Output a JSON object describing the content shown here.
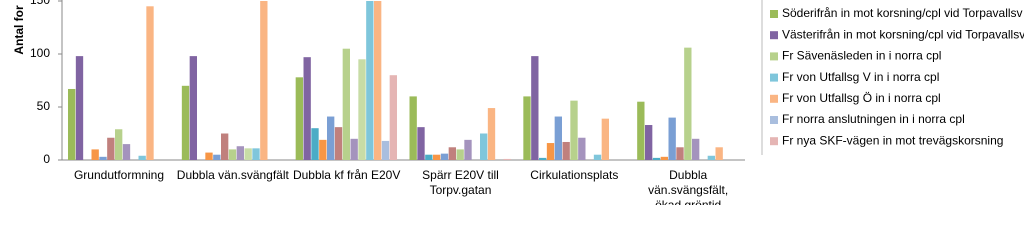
{
  "chart_data": {
    "type": "bar",
    "y_label": "Antal for",
    "categories": [
      "Grundutformning",
      "Dubbla vän.svängfält",
      "Dubbla kf från E20V",
      "Spärr E20V till\nTorpv.gatan",
      "Cirkulationsplats",
      "Dubbla vän.svängsfält,\nökad gröntid"
    ],
    "ylim": [
      0,
      150
    ],
    "yticks": [
      0,
      50,
      100,
      150
    ],
    "series": [
      {
        "name": "Söderifrån in mot korsning/cpl vid Torpavallsv",
        "color": "#9bbb59",
        "values": [
          67,
          70,
          78,
          60,
          60,
          55
        ]
      },
      {
        "name": "Västerifrån in mot korsning/cpl vid Torpavallsv",
        "color": "#8064a2",
        "values": [
          98,
          98,
          97,
          31,
          98,
          33
        ]
      },
      {
        "color": "#4bacc6",
        "values": [
          0,
          0,
          30,
          5,
          2,
          2
        ]
      },
      {
        "color": "#f79646",
        "values": [
          10,
          7,
          19,
          5,
          16,
          3
        ]
      },
      {
        "color": "#7a9fd4",
        "values": [
          3,
          5,
          41,
          6,
          41,
          40
        ]
      },
      {
        "color": "#c0807d",
        "values": [
          21,
          25,
          31,
          12,
          17,
          12
        ]
      },
      {
        "name": "Fr Sävenäsleden in i norra cpl",
        "color": "#b7d18c",
        "values": [
          29,
          10,
          105,
          10,
          56,
          106
        ]
      },
      {
        "color": "#a493bd",
        "values": [
          15,
          13,
          20,
          19,
          21,
          20
        ]
      },
      {
        "color": "#c8dca6",
        "values": [
          0,
          11,
          95,
          0,
          0,
          0
        ]
      },
      {
        "name": "Fr von Utfallsg V in i norra cpl",
        "color": "#7fc6db",
        "values": [
          4,
          11,
          150,
          25,
          5,
          4
        ]
      },
      {
        "name": "Fr von Utfallsg Ö in i norra cpl",
        "color": "#fab583",
        "values": [
          145,
          150,
          150,
          49,
          39,
          12
        ]
      },
      {
        "name": "Fr norra anslutningen in i norra cpl",
        "color": "#a9bede",
        "values": [
          0,
          0,
          18,
          0,
          0,
          0
        ]
      },
      {
        "name": "Fr nya SKF-vägen in mot trevägskorsning",
        "color": "#e5b5b4",
        "values": [
          0,
          0,
          80,
          1,
          0,
          0
        ]
      }
    ]
  }
}
